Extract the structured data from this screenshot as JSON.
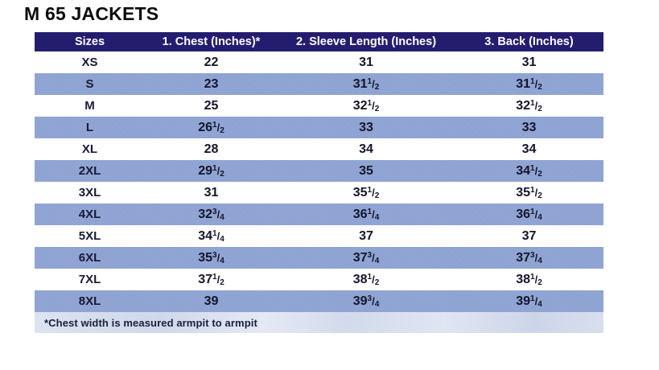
{
  "page": {
    "title": "M 65 JACKETS"
  },
  "table": {
    "columns": [
      "Sizes",
      "1. Chest (Inches)*",
      "2. Sleeve Length (Inches)",
      "3. Back (Inches)"
    ],
    "rows": [
      {
        "size": "XS",
        "chest": "22",
        "sleeve": "31",
        "back": "31"
      },
      {
        "size": "S",
        "chest": "23",
        "sleeve": "31 1/2",
        "back": "31 1/2"
      },
      {
        "size": "M",
        "chest": "25",
        "sleeve": "32 1/2",
        "back": "32 1/2"
      },
      {
        "size": "L",
        "chest": "26 1/2",
        "sleeve": "33",
        "back": "33"
      },
      {
        "size": "XL",
        "chest": "28",
        "sleeve": "34",
        "back": "34"
      },
      {
        "size": "2XL",
        "chest": "29 1/2",
        "sleeve": "35",
        "back": "34 1/2"
      },
      {
        "size": "3XL",
        "chest": "31",
        "sleeve": "35 1/2",
        "back": "35 1/2"
      },
      {
        "size": "4XL",
        "chest": "32 3/4",
        "sleeve": "36 1/4",
        "back": "36 1/4"
      },
      {
        "size": "5XL",
        "chest": "34 1/4",
        "sleeve": "37",
        "back": "37"
      },
      {
        "size": "6XL",
        "chest": "35 3/4",
        "sleeve": "37 3/4",
        "back": "37 3/4"
      },
      {
        "size": "7XL",
        "chest": "37 1/2",
        "sleeve": "38 1/2",
        "back": "38 1/2"
      },
      {
        "size": "8XL",
        "chest": "39",
        "sleeve": "39 3/4",
        "back": "39 1/4"
      }
    ],
    "footnote": "*Chest width is measured armpit to armpit"
  },
  "colors": {
    "header_bg": "#231d70",
    "header_text": "#ffffff",
    "stripe_row": "#8da2d2",
    "body_text": "#14142a",
    "footnote_bar": "#d5dcec"
  },
  "chart_data": {
    "type": "table",
    "title": "M 65 JACKETS",
    "columns": [
      "Sizes",
      "1. Chest (Inches)*",
      "2. Sleeve Length (Inches)",
      "3. Back (Inches)"
    ],
    "rows": [
      [
        "XS",
        22,
        31,
        31
      ],
      [
        "S",
        23,
        31.5,
        31.5
      ],
      [
        "M",
        25,
        32.5,
        32.5
      ],
      [
        "L",
        26.5,
        33,
        33
      ],
      [
        "XL",
        28,
        34,
        34
      ],
      [
        "2XL",
        29.5,
        35,
        34.5
      ],
      [
        "3XL",
        31,
        35.5,
        35.5
      ],
      [
        "4XL",
        32.75,
        36.25,
        36.25
      ],
      [
        "5XL",
        34.25,
        37,
        37
      ],
      [
        "6XL",
        35.75,
        37.75,
        37.75
      ],
      [
        "7XL",
        37.5,
        38.5,
        38.5
      ],
      [
        "8XL",
        39,
        39.75,
        39.25
      ]
    ],
    "footnote": "*Chest width is measured armpit to armpit",
    "units": "inches"
  }
}
